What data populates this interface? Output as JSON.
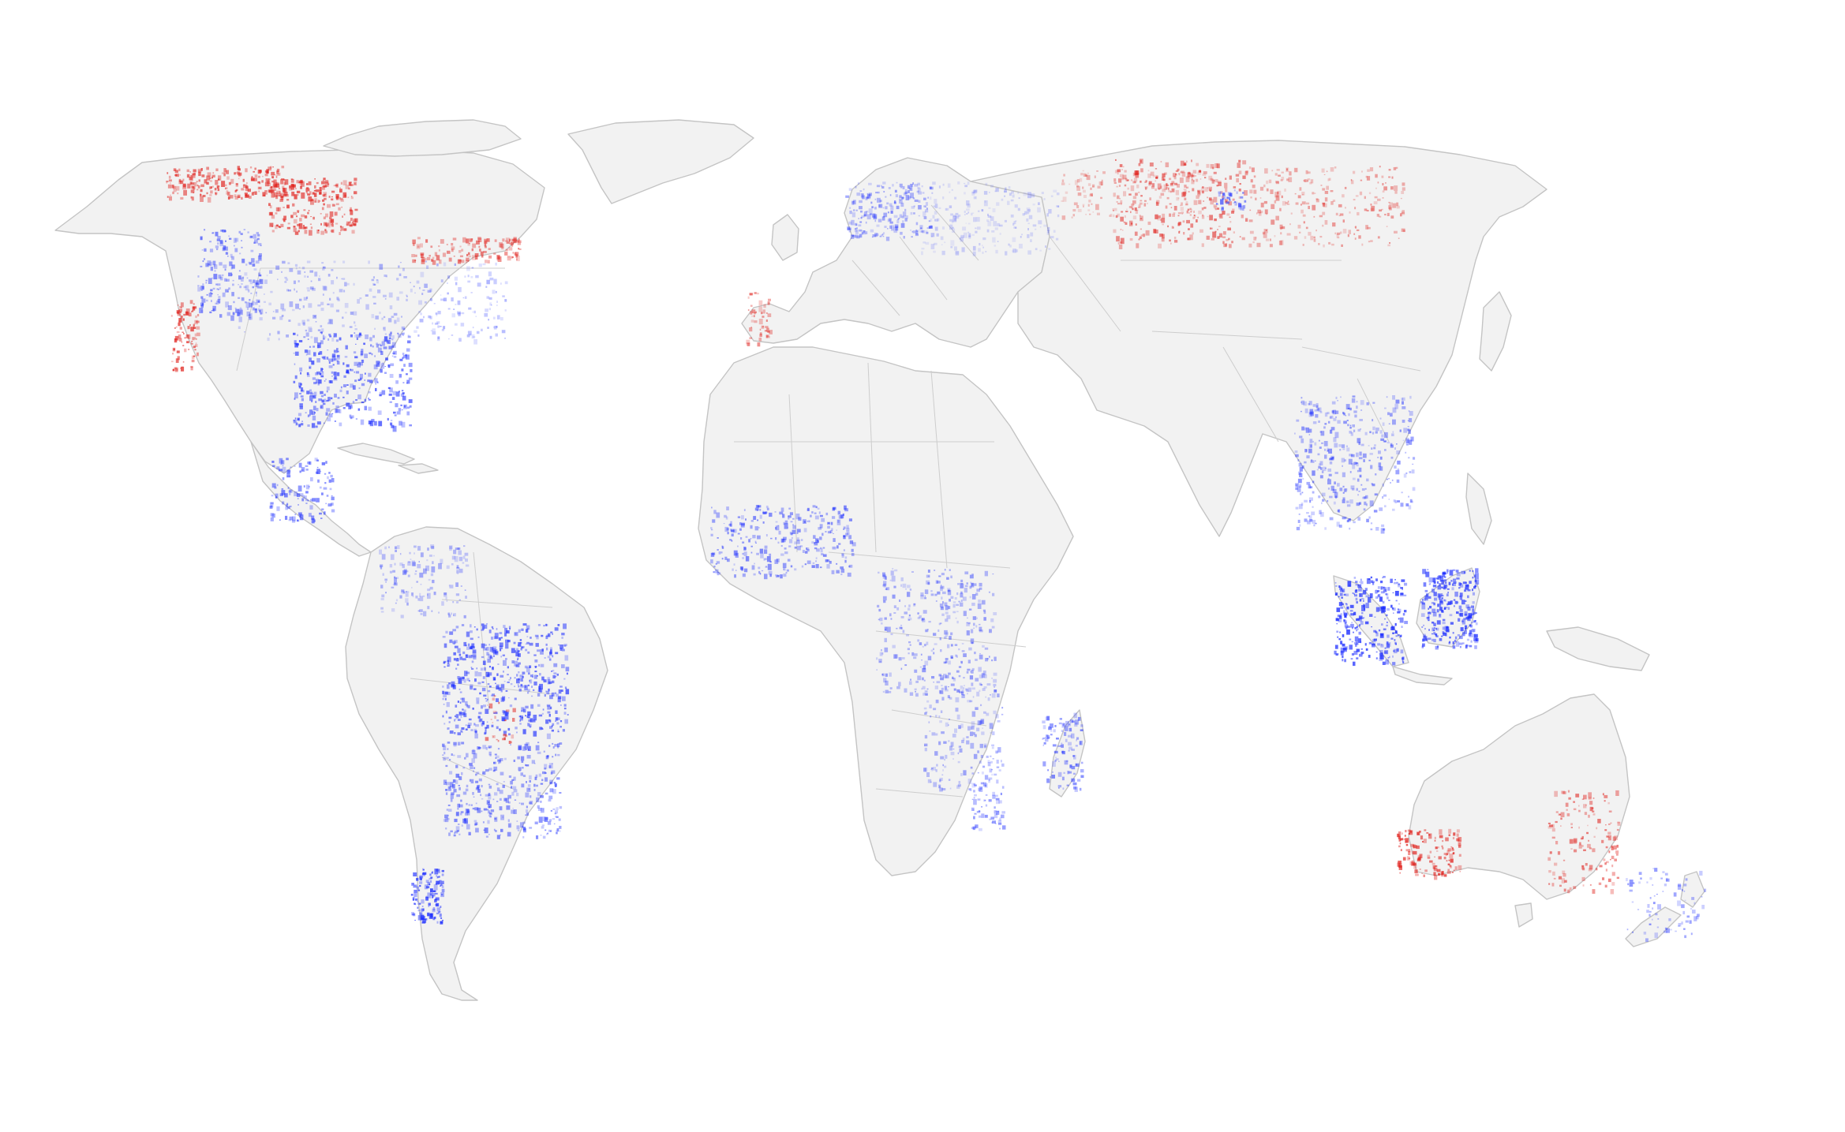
{
  "map": {
    "projection": "world-map",
    "legend": "",
    "title": "",
    "colors": {
      "background": "#ffffff",
      "land": "#f2f2f2",
      "border": "#cdcdcd",
      "increase": "#1a2bff",
      "decrease": "#e0201b"
    }
  }
}
